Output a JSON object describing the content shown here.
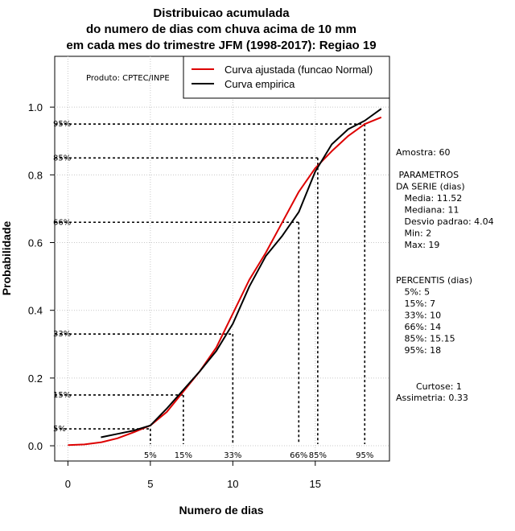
{
  "chart_data": {
    "type": "line",
    "title_lines": [
      "Distribuicao acumulada",
      "do numero de dias com chuva acima de 10 mm",
      "em cada mes do trimestre JFM (1998-2017): Regiao 19"
    ],
    "xlabel": "Numero de dias",
    "ylabel": "Probabilidade",
    "xlim": [
      -0.8,
      19.5
    ],
    "ylim": [
      -0.045,
      1.15
    ],
    "xticks": [
      "0",
      "5",
      "10",
      "15"
    ],
    "xtick_values": [
      0,
      5,
      10,
      15
    ],
    "yticks": [
      "0.0",
      "0.2",
      "0.4",
      "0.6",
      "0.8",
      "1.0"
    ],
    "ytick_values": [
      0,
      0.2,
      0.4,
      0.6,
      0.8,
      1.0
    ],
    "legend_position": "top-right",
    "product_label": "Produto: CPTEC/INPE",
    "series": [
      {
        "name": "Curva ajustada (funcao Normal)",
        "color": "#dd0000",
        "x": [
          0,
          1,
          2,
          3,
          4,
          5,
          6,
          7,
          8,
          9,
          10,
          11,
          12,
          13,
          14,
          15,
          16,
          17,
          18,
          19
        ],
        "y": [
          0.002,
          0.004,
          0.01,
          0.022,
          0.04,
          0.06,
          0.1,
          0.16,
          0.22,
          0.29,
          0.39,
          0.49,
          0.57,
          0.66,
          0.75,
          0.82,
          0.87,
          0.915,
          0.95,
          0.97
        ]
      },
      {
        "name": "Curva empirica",
        "color": "#000000",
        "x": [
          2,
          3,
          4,
          5,
          6,
          7,
          8,
          9,
          10,
          11,
          12,
          13,
          14,
          15,
          16,
          17,
          18,
          19
        ],
        "y": [
          0.025,
          0.035,
          0.045,
          0.06,
          0.11,
          0.165,
          0.22,
          0.28,
          0.36,
          0.47,
          0.56,
          0.62,
          0.69,
          0.81,
          0.89,
          0.935,
          0.96,
          0.995
        ]
      }
    ],
    "percentile_lines": [
      {
        "label": "5%",
        "prob": 0.05,
        "x": 5
      },
      {
        "label": "15%",
        "prob": 0.15,
        "x": 7
      },
      {
        "label": "33%",
        "prob": 0.33,
        "x": 10
      },
      {
        "label": "66%",
        "prob": 0.66,
        "x": 14
      },
      {
        "label": "85%",
        "prob": 0.85,
        "x": 15.15
      },
      {
        "label": "95%",
        "prob": 0.95,
        "x": 18
      }
    ]
  },
  "side_panel": {
    "amostra": "Amostra: 60",
    "parametros_lines": [
      " PARAMETROS",
      "DA SERIE (dias)",
      "   Media: 11.52",
      "   Mediana: 11",
      "   Desvio padrao: 4.04",
      "   Min: 2",
      "   Max: 19"
    ],
    "percentis_lines": [
      "PERCENTIS (dias)",
      "   5%: 5",
      "   15%: 7",
      "   33%: 10",
      "   66%: 14",
      "   85%: 15.15",
      "   95%: 18"
    ],
    "curtose": "Curtose: 1",
    "assimetria": "Assimetria: 0.33"
  }
}
